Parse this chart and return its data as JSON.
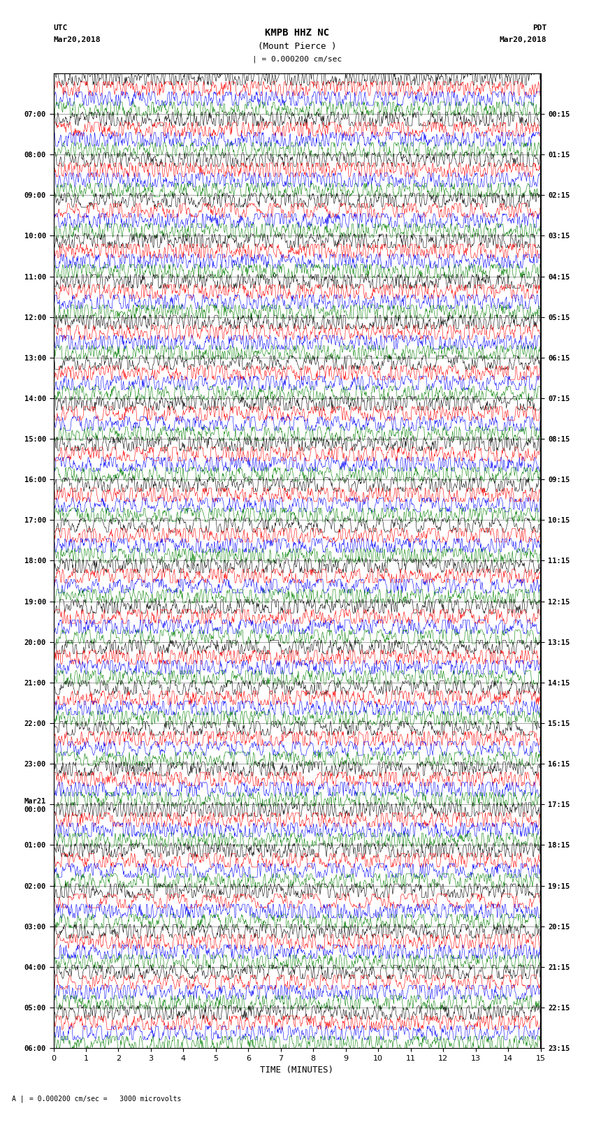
{
  "title_line1": "KMPB HHZ NC",
  "title_line2": "(Mount Pierce )",
  "scale_text": "| = 0.000200 cm/sec",
  "bottom_scale_text": "= 0.000200 cm/sec =   3000 microvolts",
  "left_header": "UTC\nMar20,2018",
  "right_header": "PDT\nMar20,2018",
  "xlabel": "TIME (MINUTES)",
  "x_ticks": [
    0,
    1,
    2,
    3,
    4,
    5,
    6,
    7,
    8,
    9,
    10,
    11,
    12,
    13,
    14,
    15
  ],
  "left_times": [
    "07:00",
    "08:00",
    "09:00",
    "10:00",
    "11:00",
    "12:00",
    "13:00",
    "14:00",
    "15:00",
    "16:00",
    "17:00",
    "18:00",
    "19:00",
    "20:00",
    "21:00",
    "22:00",
    "23:00",
    "Mar21\n00:00",
    "01:00",
    "02:00",
    "03:00",
    "04:00",
    "05:00",
    "06:00"
  ],
  "right_times": [
    "00:15",
    "01:15",
    "02:15",
    "03:15",
    "04:15",
    "05:15",
    "06:15",
    "07:15",
    "08:15",
    "09:15",
    "10:15",
    "11:15",
    "12:15",
    "13:15",
    "14:15",
    "15:15",
    "16:15",
    "17:15",
    "18:15",
    "19:15",
    "20:15",
    "21:15",
    "22:15",
    "23:15"
  ],
  "num_rows": 24,
  "traces_per_row": 4,
  "colors": [
    "black",
    "red",
    "blue",
    "green"
  ],
  "bg_color": "white",
  "trace_amplitude": 0.35,
  "noise_seed": 42,
  "fig_width": 8.5,
  "fig_height": 16.13
}
